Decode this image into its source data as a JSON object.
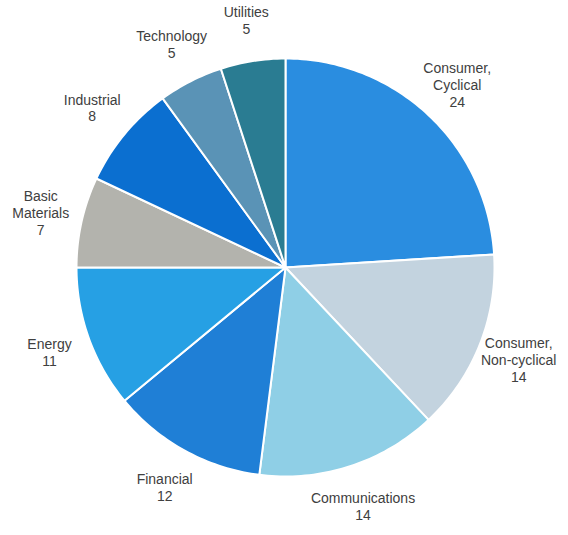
{
  "chart_data": {
    "type": "pie",
    "categories": [
      "Consumer, Cyclical",
      "Consumer, Non-cyclical",
      "Communications",
      "Financial",
      "Energy",
      "Basic Materials",
      "Industrial",
      "Technology",
      "Utilities"
    ],
    "values": [
      24,
      14,
      14,
      12,
      11,
      7,
      8,
      5,
      5
    ],
    "colors": [
      "#2a8de0",
      "#c3d3df",
      "#8fcfe6",
      "#1f7fd6",
      "#26a0e4",
      "#b3b3ad",
      "#0b6fd0",
      "#5a93b6",
      "#2a7c92"
    ],
    "data_labels": true
  }
}
